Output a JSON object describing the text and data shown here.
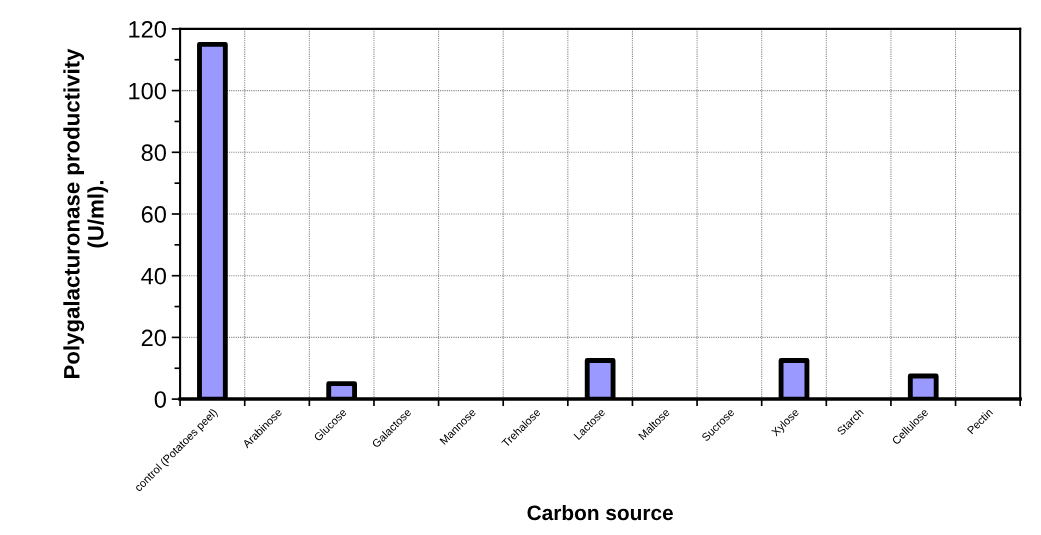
{
  "chart_data": {
    "type": "bar",
    "xlabel": "Carbon source",
    "ylabel": "Polygalacturonase productivity\n(U/ml).",
    "categories": [
      "control (Potatoes peel)",
      "Arabinose",
      "Glucose",
      "Galactose",
      "Mannose",
      "Trehalose",
      "Lactose",
      "Maltose",
      "Sucrose",
      "Xylose",
      "Starch",
      "Cellulose",
      "Pectin"
    ],
    "values": [
      115,
      0,
      5,
      0,
      0,
      0,
      12.5,
      0,
      0,
      12.5,
      0,
      7.5,
      0
    ],
    "color": "#9999ff",
    "ylim": [
      0,
      120
    ],
    "yticks": [
      0,
      20,
      40,
      60,
      80,
      100,
      120
    ],
    "grid": true
  }
}
